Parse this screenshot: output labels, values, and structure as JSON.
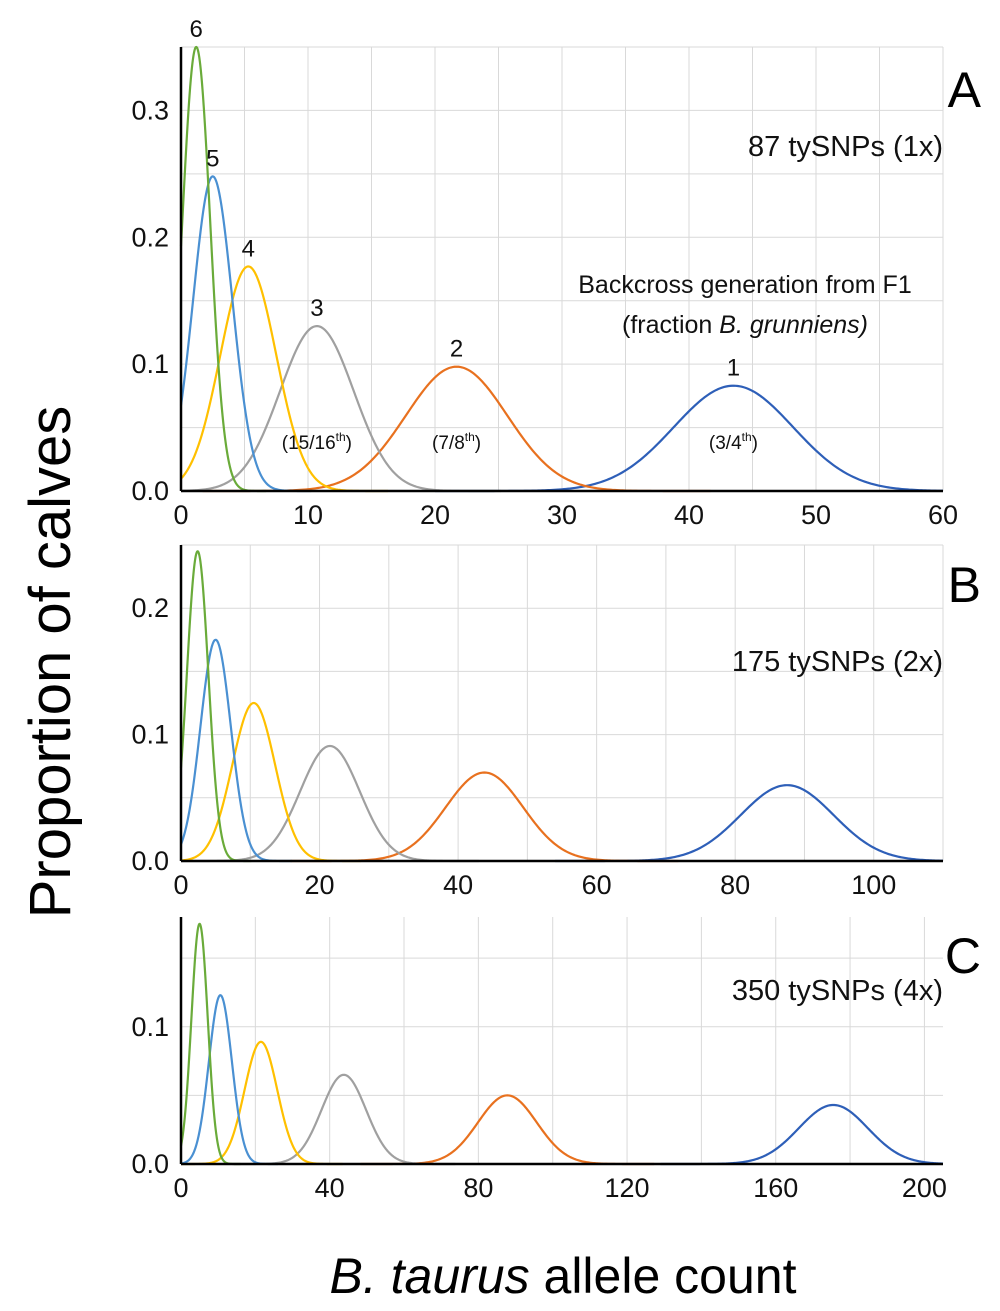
{
  "figure": {
    "ylabel": "Proportion of calves",
    "xlabel_italic": "B. taurus",
    "xlabel_rest": " allele count",
    "colors": {
      "gen1": "#2e5fb8",
      "gen2": "#e8711f",
      "gen3": "#a0a0a0",
      "gen4": "#ffc000",
      "gen5": "#4a90d2",
      "gen6": "#6aab3a"
    }
  },
  "chart_data": [
    {
      "type": "line",
      "panel": "A",
      "subtitle": "87 tySNPs (1x)",
      "n_snps": 87,
      "xlim": [
        0,
        60
      ],
      "xticks": [
        0,
        10,
        20,
        30,
        40,
        50,
        60
      ],
      "xtick_labels": [
        "0",
        "10",
        "20",
        "30",
        "40",
        "50",
        "60"
      ],
      "ylim": [
        0,
        0.35
      ],
      "yticks": [
        0,
        0.1,
        0.2,
        0.3
      ],
      "ytick_labels": [
        "0.0",
        "0.1",
        "0.2",
        "0.3"
      ],
      "legend_title_line1": "Backcross generation from F1",
      "legend_title_line2_plain": "(fraction ",
      "legend_title_line2_italic": "B. grunniens)",
      "series": [
        {
          "name": "1",
          "label": "1",
          "fraction_main": "(3/4",
          "fraction_sup": "th",
          "fraction_end": ")",
          "peak_x": 43.5,
          "peak_y": 0.083,
          "sd": 4.7
        },
        {
          "name": "2",
          "label": "2",
          "fraction_main": "(7/8",
          "fraction_sup": "th",
          "fraction_end": ")",
          "peak_x": 21.7,
          "peak_y": 0.098,
          "sd": 4.0
        },
        {
          "name": "3",
          "label": "3",
          "fraction_main": "(15/16",
          "fraction_sup": "th",
          "fraction_end": ")",
          "peak_x": 10.7,
          "peak_y": 0.13,
          "sd": 2.9
        },
        {
          "name": "4",
          "label": "4",
          "peak_x": 5.3,
          "peak_y": 0.177,
          "sd": 2.2
        },
        {
          "name": "5",
          "label": "5",
          "peak_x": 2.5,
          "peak_y": 0.248,
          "sd": 1.55
        },
        {
          "name": "6",
          "label": "6",
          "peak_x": 1.2,
          "peak_y": 0.35,
          "sd": 1.1
        }
      ]
    },
    {
      "type": "line",
      "panel": "B",
      "subtitle": "175 tySNPs (2x)",
      "n_snps": 175,
      "xlim": [
        0,
        110
      ],
      "xticks": [
        0,
        20,
        40,
        60,
        80,
        100
      ],
      "xtick_labels": [
        "0",
        "20",
        "40",
        "60",
        "80",
        "100"
      ],
      "ylim": [
        0,
        0.25
      ],
      "yticks": [
        0,
        0.1,
        0.2
      ],
      "ytick_labels": [
        "0.0",
        "0.1",
        "0.2"
      ],
      "series": [
        {
          "name": "1",
          "peak_x": 87.5,
          "peak_y": 0.06,
          "sd": 6.7
        },
        {
          "name": "2",
          "peak_x": 43.8,
          "peak_y": 0.07,
          "sd": 5.6
        },
        {
          "name": "3",
          "peak_x": 21.5,
          "peak_y": 0.091,
          "sd": 4.3
        },
        {
          "name": "4",
          "peak_x": 10.5,
          "peak_y": 0.125,
          "sd": 3.1
        },
        {
          "name": "5",
          "peak_x": 5.0,
          "peak_y": 0.175,
          "sd": 2.2
        },
        {
          "name": "6",
          "peak_x": 2.4,
          "peak_y": 0.245,
          "sd": 1.55
        }
      ]
    },
    {
      "type": "line",
      "panel": "C",
      "subtitle": "350 tySNPs (4x)",
      "n_snps": 350,
      "xlim": [
        0,
        205
      ],
      "xticks": [
        0,
        40,
        80,
        120,
        160,
        200
      ],
      "xtick_labels": [
        "0",
        "40",
        "80",
        "120",
        "160",
        "200"
      ],
      "ylim": [
        0,
        0.18
      ],
      "yticks": [
        0,
        0.1
      ],
      "ytick_labels": [
        "0.0",
        "0.1"
      ],
      "series": [
        {
          "name": "1",
          "peak_x": 175.5,
          "peak_y": 0.043,
          "sd": 9.3
        },
        {
          "name": "2",
          "peak_x": 87.8,
          "peak_y": 0.05,
          "sd": 7.9
        },
        {
          "name": "3",
          "peak_x": 43.8,
          "peak_y": 0.065,
          "sd": 6.0
        },
        {
          "name": "4",
          "peak_x": 21.5,
          "peak_y": 0.089,
          "sd": 4.4
        },
        {
          "name": "5",
          "peak_x": 10.6,
          "peak_y": 0.123,
          "sd": 3.1
        },
        {
          "name": "6",
          "peak_x": 5.0,
          "peak_y": 0.175,
          "sd": 2.2
        }
      ]
    }
  ]
}
